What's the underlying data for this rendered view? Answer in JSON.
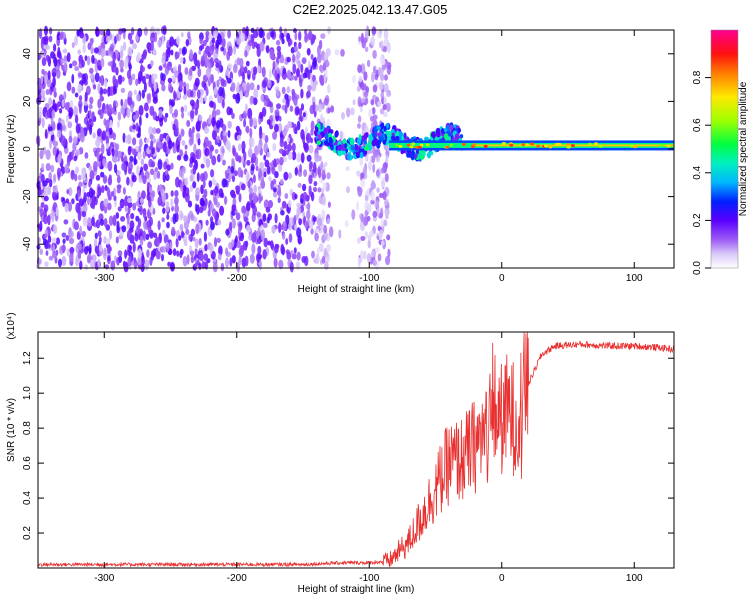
{
  "title": "C2E2.2025.042.13.47.G05",
  "chart_data": [
    {
      "type": "heatmap",
      "xlabel": "Height of straight line (km)",
      "ylabel": "Frequency (Hz)",
      "xlim": [
        -350,
        130
      ],
      "ylim": [
        -50,
        50
      ],
      "xticks": [
        -300,
        -200,
        -100,
        0,
        100
      ],
      "yticks": [
        -40,
        -20,
        0,
        20,
        40
      ],
      "colorbar": {
        "label": "Normalized spectral amplitude",
        "range": [
          0,
          1
        ],
        "ticks": [
          0.0,
          0.2,
          0.4,
          0.6,
          0.8
        ],
        "colormap": "white-purple-blue-cyan-green-yellow-red-magenta"
      },
      "features": {
        "noise_x_range": [
          -350,
          -85
        ],
        "gap_x_range": [
          -130,
          -108
        ],
        "signal_line": {
          "x_start": -85,
          "x_end": 130,
          "freq_hz": 1.5,
          "amplitude": 0.6
        }
      }
    },
    {
      "type": "line",
      "xlabel": "Height of straight line (km)",
      "ylabel": "SNR (10 * v/v)",
      "y_multiplier": "(x10⁴)",
      "xlim": [
        -350,
        130
      ],
      "ylim": [
        0,
        1.35
      ],
      "xticks": [
        -300,
        -200,
        -100,
        0,
        100
      ],
      "yticks": [
        0.2,
        0.4,
        0.6,
        0.8,
        1.0,
        1.2
      ],
      "color": "#e83030",
      "series": [
        {
          "x": [
            -350,
            -300,
            -250,
            -200,
            -150,
            -120,
            -100,
            -85,
            -70,
            -60,
            -50,
            -40,
            -30,
            -20,
            -10,
            -5,
            0,
            5,
            10,
            20,
            30,
            40,
            60,
            80,
            100,
            120,
            130
          ],
          "y": [
            0.02,
            0.02,
            0.02,
            0.02,
            0.02,
            0.03,
            0.03,
            0.04,
            0.15,
            0.3,
            0.45,
            0.6,
            0.62,
            0.7,
            0.8,
            0.9,
            0.85,
            0.9,
            0.85,
            1.05,
            1.22,
            1.27,
            1.28,
            1.27,
            1.27,
            1.26,
            1.25
          ]
        }
      ]
    }
  ]
}
